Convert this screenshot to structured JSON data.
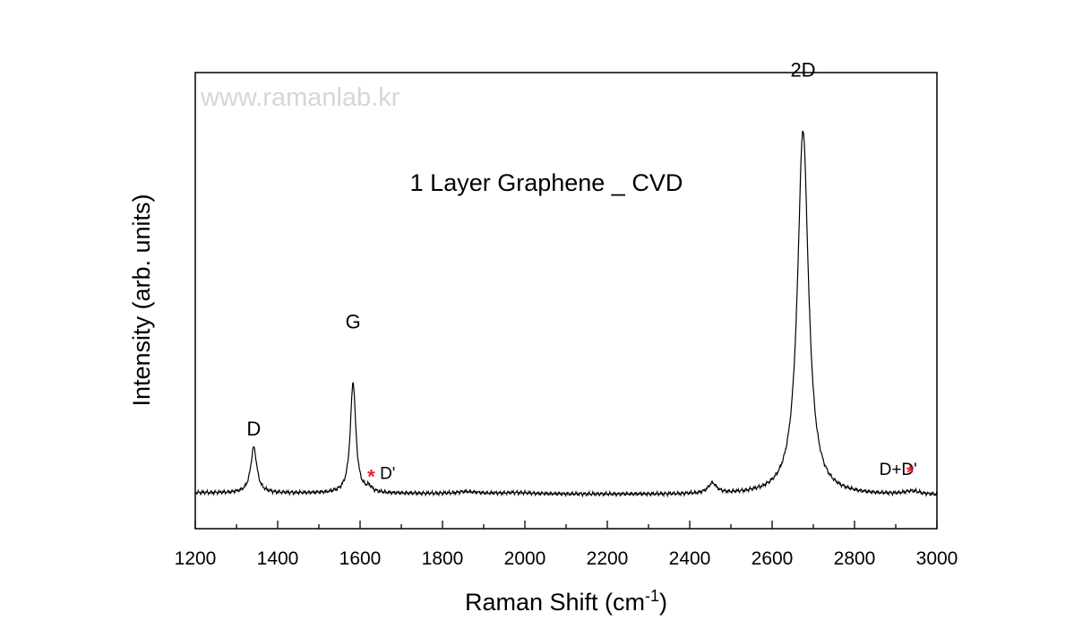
{
  "chart_data": {
    "type": "line",
    "title": "1 Layer Graphene _ CVD",
    "watermark": "www.ramanlab.kr",
    "xlabel": "Raman Shift (cm",
    "xlabel_sup": "-1",
    "xlabel_end": ")",
    "ylabel": "Intensity (arb. units)",
    "xlim": [
      1200,
      3000
    ],
    "ylim": [
      0,
      100
    ],
    "x_ticks": [
      1200,
      1400,
      1600,
      1800,
      2000,
      2200,
      2400,
      2600,
      2800,
      3000
    ],
    "y_ticks_labeled": false,
    "accent_color": "#e8232a",
    "series": [
      {
        "peaks": [
          {
            "center": 1342,
            "height": 11.5,
            "width": 9
          },
          {
            "center": 1583,
            "height": 28,
            "width": 8
          },
          {
            "center": 1622,
            "height": 1.2,
            "width": 8
          },
          {
            "center": 1860,
            "height": 0.5,
            "width": 30
          },
          {
            "center": 1980,
            "height": 0.3,
            "width": 40
          },
          {
            "center": 2455,
            "height": 2.6,
            "width": 12
          },
          {
            "center": 2675,
            "height": 92,
            "width": 16
          },
          {
            "center": 2940,
            "height": 0.9,
            "width": 25
          }
        ],
        "baseline": 9.2
      }
    ],
    "annotations": [
      {
        "text": "D",
        "x": 1342,
        "y": 14.5,
        "kind": "peak"
      },
      {
        "text": "G",
        "x": 1583,
        "y": 41.5,
        "kind": "peak"
      },
      {
        "text": "2D",
        "x": 2675,
        "y": 105,
        "kind": "peak"
      },
      {
        "text": "D'",
        "x": 1648,
        "y": 3.5,
        "kind": "small",
        "star": true,
        "star_x": 1627
      },
      {
        "text": "D+D'",
        "x": 2860,
        "y": 4.5,
        "kind": "small",
        "star": true,
        "star_x": 2935
      }
    ]
  }
}
